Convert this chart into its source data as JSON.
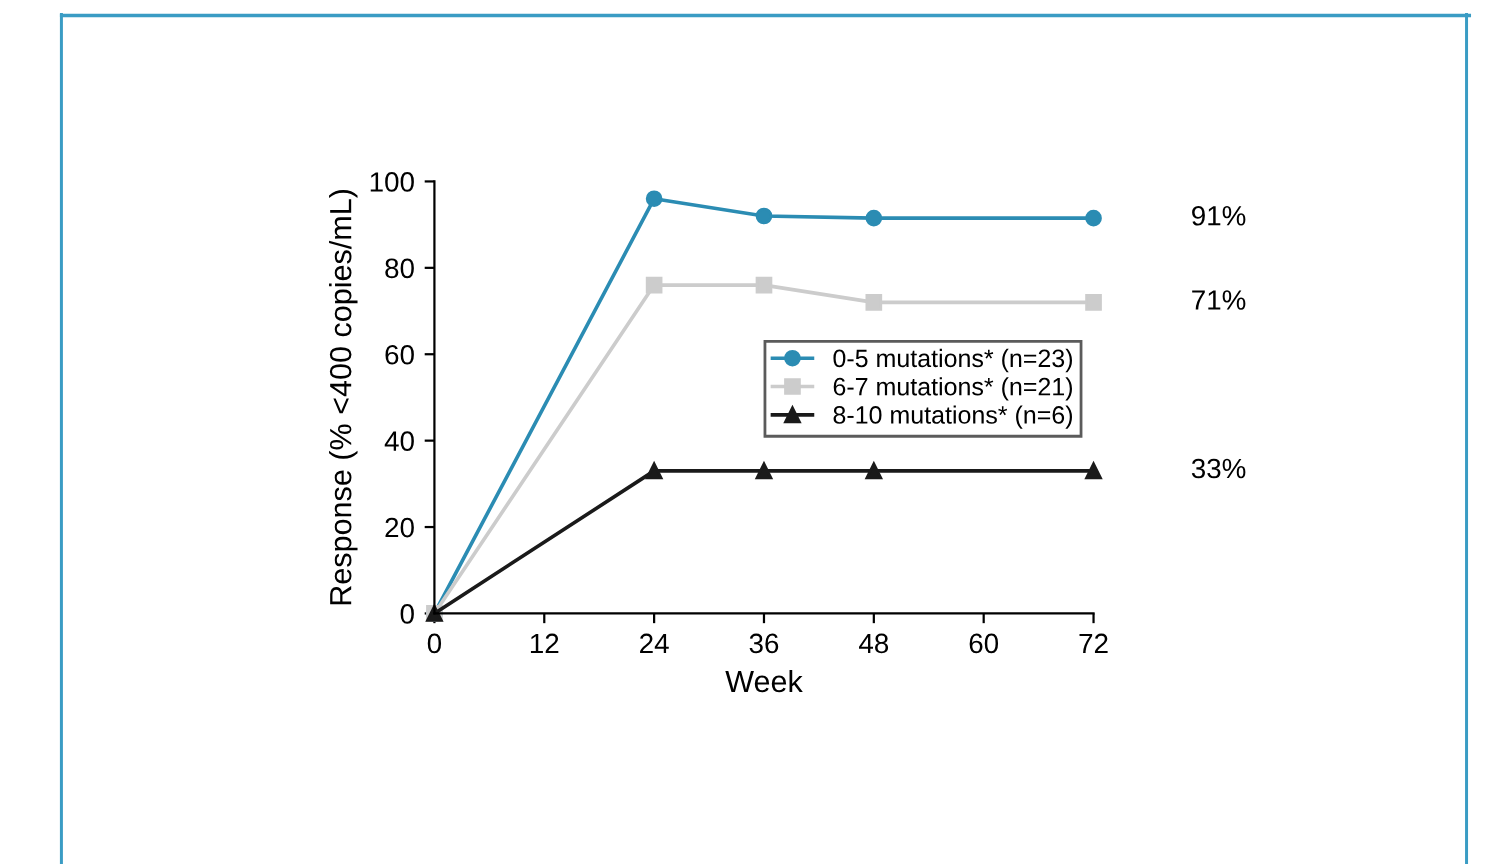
{
  "chart_data": {
    "type": "line",
    "xlabel": "Week",
    "ylabel": "Response (% <400 copies/mL)",
    "xlim": [
      0,
      72
    ],
    "xticks": [
      0,
      12,
      24,
      36,
      48,
      60,
      72
    ],
    "ylim": [
      0,
      100
    ],
    "yticks": [
      0,
      20,
      40,
      60,
      80,
      100
    ],
    "grid": false,
    "legend": "right",
    "series": [
      {
        "name": "0-5 mutations* (n=23)",
        "color": "#2b8cb3",
        "marker": "circle",
        "x": [
          0,
          24,
          36,
          48,
          72
        ],
        "values": [
          0,
          96,
          92,
          91.5,
          91.5
        ]
      },
      {
        "name": "6-7 mutations* (n=21)",
        "color": "#cccccc",
        "marker": "square",
        "x": [
          0,
          24,
          36,
          48,
          72
        ],
        "values": [
          0,
          76,
          76,
          72,
          72
        ]
      },
      {
        "name": "8-10 mutations* (n=6)",
        "color": "#1a1a1a",
        "marker": "triangle",
        "x": [
          0,
          24,
          36,
          48,
          72
        ],
        "values": [
          0,
          33,
          33,
          33,
          33
        ]
      }
    ],
    "annotations": [
      "91%",
      "71%",
      "33%"
    ]
  }
}
